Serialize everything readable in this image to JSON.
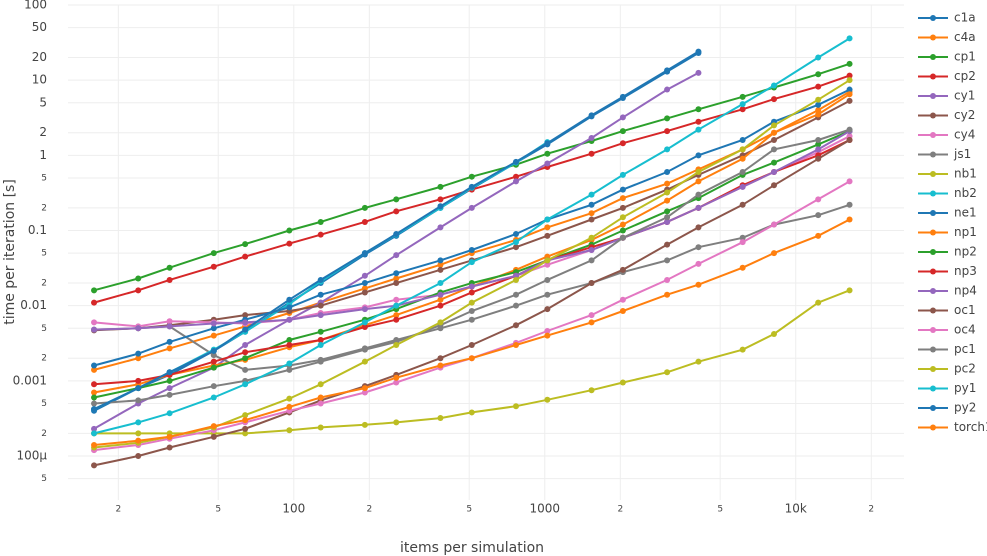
{
  "chart_data": {
    "type": "line",
    "x_label": "items per simulation",
    "y_label": "time per iteration [s]",
    "xscale": "log",
    "yscale": "log",
    "grid": true,
    "legend_position": "right",
    "xlim": [
      12.6,
      27000
    ],
    "ylim": [
      2.6e-05,
      100
    ],
    "xticks": [
      {
        "value": 20,
        "label": "2"
      },
      {
        "value": 50,
        "label": "5"
      },
      100,
      {
        "value": 200,
        "label": "2"
      },
      {
        "value": 500,
        "label": "5"
      },
      1000,
      {
        "value": 2000,
        "label": "2"
      },
      {
        "value": 5000,
        "label": "5"
      },
      {
        "value": 10000,
        "label": "10k"
      },
      {
        "value": 20000,
        "label": "2"
      }
    ],
    "yticks": [
      {
        "value": 5e-05,
        "label": "5"
      },
      {
        "value": 0.0001,
        "label": "100µ"
      },
      {
        "value": 0.0002,
        "label": "2"
      },
      {
        "value": 0.0005,
        "label": "5"
      },
      0.001,
      {
        "value": 0.002,
        "label": "2"
      },
      {
        "value": 0.005,
        "label": "5"
      },
      0.01,
      {
        "value": 0.02,
        "label": "2"
      },
      {
        "value": 0.05,
        "label": "5"
      },
      0.1,
      {
        "value": 0.2,
        "label": "2"
      },
      {
        "value": 0.5,
        "label": "5"
      },
      1,
      2,
      5,
      10,
      20,
      50,
      100
    ],
    "x": [
      16,
      24,
      32,
      48,
      64,
      96,
      128,
      192,
      256,
      384,
      512,
      768,
      1024,
      1536,
      2048,
      3072,
      4096,
      6144,
      8192,
      12288,
      16384
    ],
    "series": [
      {
        "name": "c1a",
        "color": "#1f77b4",
        "values": [
          0.0004,
          0.0008,
          0.0012,
          0.0025,
          0.0045,
          0.011,
          0.02,
          0.048,
          0.085,
          0.2,
          0.36,
          0.8,
          1.4,
          3.3,
          5.8,
          13,
          23,
          null,
          null,
          null,
          null
        ]
      },
      {
        "name": "c4a",
        "color": "#ff7f0e",
        "values": [
          0.0014,
          0.002,
          0.0027,
          0.004,
          0.0053,
          0.008,
          0.011,
          0.017,
          0.023,
          0.035,
          0.05,
          0.075,
          0.11,
          0.17,
          0.27,
          0.42,
          0.65,
          1.2,
          2.0,
          4.0,
          7.0
        ]
      },
      {
        "name": "cp1",
        "color": "#2ca02c",
        "values": [
          0.016,
          0.023,
          0.032,
          0.05,
          0.066,
          0.1,
          0.13,
          0.2,
          0.26,
          0.38,
          0.52,
          0.75,
          1.05,
          1.55,
          2.1,
          3.1,
          4.1,
          6,
          8,
          12,
          16.5
        ]
      },
      {
        "name": "cp2",
        "color": "#d62728",
        "values": [
          0.011,
          0.016,
          0.022,
          0.033,
          0.045,
          0.067,
          0.088,
          0.13,
          0.18,
          0.26,
          0.35,
          0.52,
          0.7,
          1.05,
          1.45,
          2.1,
          2.8,
          4.1,
          5.6,
          8.2,
          11.5
        ]
      },
      {
        "name": "cy1",
        "color": "#9467bd",
        "values": [
          0.00023,
          0.0005,
          0.0008,
          0.0015,
          0.003,
          0.0065,
          0.011,
          0.025,
          0.047,
          0.11,
          0.2,
          0.45,
          0.78,
          1.7,
          3.2,
          7.5,
          12.5,
          null,
          null,
          null,
          null
        ]
      },
      {
        "name": "cy2",
        "color": "#8c564b",
        "values": [
          0.0047,
          0.005,
          0.0055,
          0.0065,
          0.0075,
          0.0085,
          0.01,
          0.015,
          0.02,
          0.03,
          0.04,
          0.06,
          0.085,
          0.14,
          0.2,
          0.35,
          0.55,
          1.0,
          1.6,
          3.2,
          5.3
        ]
      },
      {
        "name": "cy4",
        "color": "#e377c2",
        "values": [
          0.006,
          0.0053,
          0.0062,
          0.006,
          0.0058,
          0.0065,
          0.008,
          0.0095,
          0.012,
          0.014,
          0.018,
          0.025,
          0.035,
          0.055,
          0.08,
          0.13,
          0.2,
          0.38,
          0.6,
          1.1,
          1.8
        ]
      },
      {
        "name": "js1",
        "color": "#7f7f7f",
        "values": [
          0.0048,
          0.005,
          0.0053,
          0.0022,
          0.0014,
          0.0016,
          0.0019,
          0.0027,
          0.0035,
          0.005,
          0.0065,
          0.01,
          0.014,
          0.02,
          0.028,
          0.04,
          0.06,
          0.08,
          0.12,
          0.16,
          0.22
        ]
      },
      {
        "name": "nb1",
        "color": "#bcbd22",
        "values": [
          0.0002,
          0.0002,
          0.0002,
          0.0002,
          0.0002,
          0.00022,
          0.00024,
          0.00026,
          0.00028,
          0.00032,
          0.00038,
          0.00046,
          0.00056,
          0.00075,
          0.00095,
          0.0013,
          0.0018,
          0.0026,
          0.0042,
          0.011,
          0.016
        ]
      },
      {
        "name": "nb2",
        "color": "#17becf",
        "values": [
          0.00042,
          0.0008,
          0.0013,
          0.0026,
          0.0045,
          0.0105,
          0.021,
          0.05,
          0.088,
          0.2,
          0.37,
          0.8,
          1.5,
          null,
          null,
          null,
          null,
          null,
          null,
          null,
          null
        ]
      },
      {
        "name": "ne1",
        "color": "#1f77b4",
        "values": [
          0.0016,
          0.0023,
          0.0033,
          0.005,
          0.0065,
          0.0095,
          0.014,
          0.02,
          0.027,
          0.04,
          0.055,
          0.09,
          0.14,
          0.22,
          0.35,
          0.6,
          1.0,
          1.6,
          2.8,
          4.7,
          7.5
        ]
      },
      {
        "name": "np1",
        "color": "#ff7f0e",
        "values": [
          0.0007,
          0.0009,
          0.0012,
          0.0016,
          0.0019,
          0.0028,
          0.0035,
          0.0055,
          0.0075,
          0.012,
          0.018,
          0.03,
          0.045,
          0.075,
          0.12,
          0.25,
          0.45,
          0.9,
          2.0,
          3.5,
          6.5
        ]
      },
      {
        "name": "np2",
        "color": "#2ca02c",
        "values": [
          0.0006,
          0.0008,
          0.001,
          0.0015,
          0.002,
          0.0035,
          0.0045,
          0.0065,
          0.009,
          0.015,
          0.02,
          0.028,
          0.04,
          0.065,
          0.1,
          0.18,
          0.27,
          0.55,
          0.8,
          1.4,
          2.1
        ]
      },
      {
        "name": "np3",
        "color": "#d62728",
        "values": [
          0.0009,
          0.001,
          0.0012,
          0.0018,
          0.0024,
          0.003,
          0.0035,
          0.0052,
          0.0065,
          0.01,
          0.015,
          0.025,
          0.04,
          0.06,
          0.08,
          0.13,
          0.2,
          0.4,
          0.6,
          1.0,
          1.6
        ]
      },
      {
        "name": "np4",
        "color": "#9467bd",
        "values": [
          0.0048,
          0.005,
          0.0053,
          0.0058,
          0.006,
          0.0065,
          0.0075,
          0.009,
          0.01,
          0.014,
          0.018,
          0.025,
          0.04,
          0.055,
          0.08,
          0.13,
          0.2,
          0.38,
          0.6,
          1.2,
          2.1
        ]
      },
      {
        "name": "oc1",
        "color": "#8c564b",
        "values": [
          7.5e-05,
          0.0001,
          0.00013,
          0.00018,
          0.00023,
          0.00038,
          0.00055,
          0.00085,
          0.0012,
          0.002,
          0.003,
          0.0055,
          0.009,
          0.02,
          0.03,
          0.065,
          0.11,
          0.22,
          0.4,
          0.9,
          1.6
        ]
      },
      {
        "name": "oc4",
        "color": "#e377c2",
        "values": [
          0.00012,
          0.00014,
          0.00017,
          0.00022,
          0.00028,
          0.0004,
          0.0005,
          0.0007,
          0.00095,
          0.0015,
          0.002,
          0.0032,
          0.0046,
          0.0075,
          0.012,
          0.022,
          0.036,
          0.07,
          0.12,
          0.26,
          0.45
        ]
      },
      {
        "name": "pc1",
        "color": "#7f7f7f",
        "values": [
          0.0005,
          0.00055,
          0.00065,
          0.00085,
          0.001,
          0.0014,
          0.0018,
          0.0026,
          0.0033,
          0.0055,
          0.0085,
          0.014,
          0.022,
          0.04,
          0.08,
          0.15,
          0.3,
          0.6,
          1.2,
          1.6,
          2.2
        ]
      },
      {
        "name": "pc2",
        "color": "#bcbd22",
        "values": [
          0.00013,
          0.00015,
          0.00018,
          0.00024,
          0.00035,
          0.00058,
          0.0009,
          0.0018,
          0.003,
          0.006,
          0.011,
          0.022,
          0.04,
          0.08,
          0.15,
          0.32,
          0.6,
          1.2,
          2.5,
          5.5,
          10
        ]
      },
      {
        "name": "py1",
        "color": "#17becf",
        "values": [
          0.0002,
          0.00028,
          0.00037,
          0.0006,
          0.0009,
          0.0017,
          0.003,
          0.006,
          0.01,
          0.02,
          0.038,
          0.07,
          0.14,
          0.3,
          0.55,
          1.2,
          2.2,
          4.8,
          8.5,
          20,
          36
        ]
      },
      {
        "name": "py2",
        "color": "#1f77b4",
        "values": [
          0.00042,
          0.0008,
          0.0013,
          0.0025,
          0.0048,
          0.012,
          0.022,
          0.05,
          0.09,
          0.21,
          0.38,
          0.82,
          1.45,
          3.4,
          6.0,
          13.5,
          24,
          null,
          null,
          null,
          null
        ]
      },
      {
        "name": "torch1",
        "color": "#ff7f0e",
        "values": [
          0.00014,
          0.00016,
          0.00018,
          0.00025,
          0.0003,
          0.00045,
          0.0006,
          0.0008,
          0.0011,
          0.0016,
          0.002,
          0.003,
          0.004,
          0.006,
          0.0085,
          0.014,
          0.019,
          0.032,
          0.05,
          0.085,
          0.14
        ]
      }
    ]
  }
}
